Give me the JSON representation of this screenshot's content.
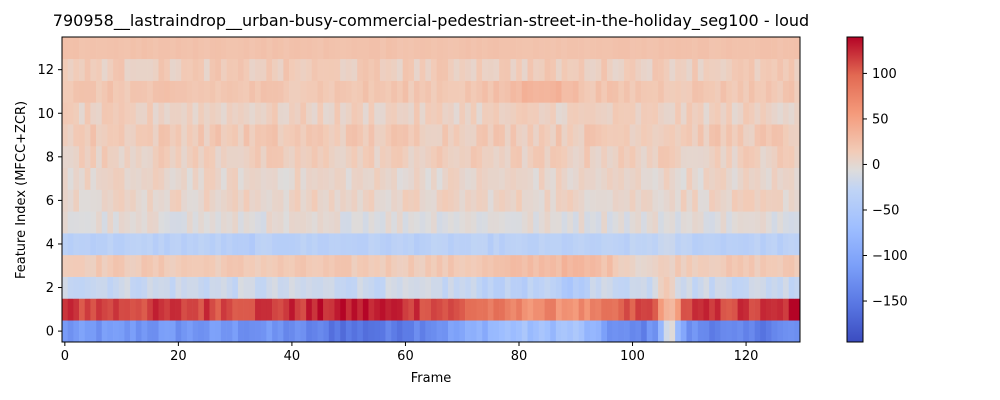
{
  "chart_data": {
    "type": "heatmap",
    "title": "790958__lastraindrop__urban-busy-commercial-pedestrian-street-in-the-holiday_seg100 - loud",
    "xlabel": "Frame",
    "ylabel": "Feature Index (MFCC+ZCR)",
    "n_frames": 130,
    "n_features": 14,
    "xlim": [
      -0.5,
      129.5
    ],
    "ylim": [
      -0.5,
      13.5
    ],
    "x_ticks": [
      0,
      20,
      40,
      60,
      80,
      100,
      120
    ],
    "y_ticks": [
      0,
      2,
      4,
      6,
      8,
      10,
      12
    ],
    "colorbar": {
      "colormap": "coolwarm",
      "vmin": -195,
      "vmax": 140,
      "ticks": [
        100,
        50,
        0,
        -50,
        -100,
        -150
      ],
      "tick_labels": [
        "100",
        "50",
        "0",
        "−50",
        "−100",
        "−150"
      ]
    },
    "row_means": [
      -120,
      115,
      -20,
      15,
      -35,
      -5,
      5,
      3,
      10,
      15,
      8,
      18,
      12,
      22
    ],
    "rows": [
      {
        "index": 0,
        "description": "strongly negative, darkest near frames 40-60, lighter near 72-90 and 105-108",
        "mean": -120
      },
      {
        "index": 1,
        "description": "strongly positive, darkest near frames 45-60 and 128-129, lighter near 105-108",
        "mean": 115
      },
      {
        "index": 2,
        "description": "slightly negative, bluest near frames 88-90; warm patch at frames 105-107",
        "mean": -20
      },
      {
        "index": 3,
        "description": "mildly positive, warmer near frames 78-98",
        "mean": 15
      }
    ]
  }
}
